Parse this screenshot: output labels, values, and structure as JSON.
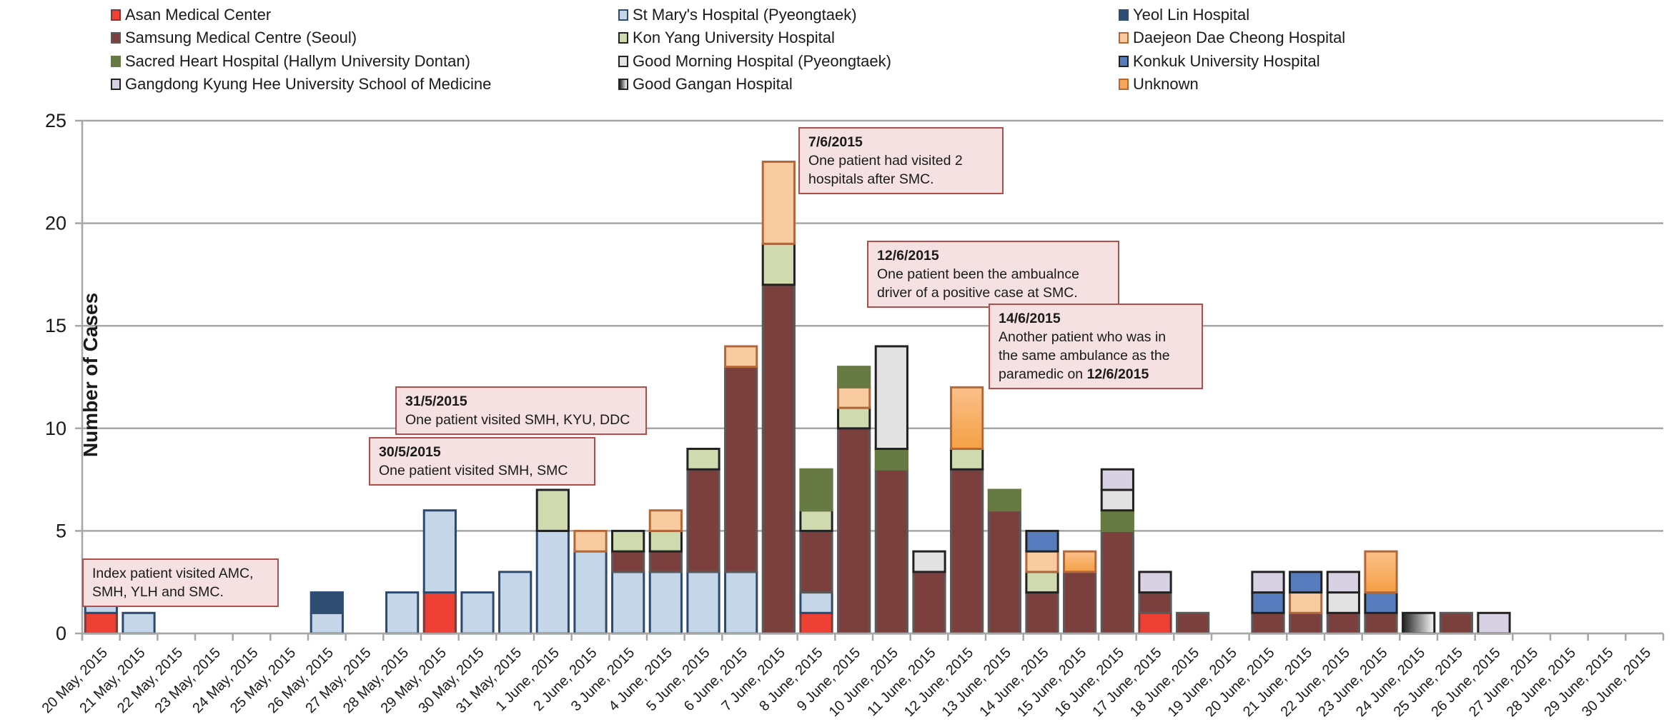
{
  "chart_data": {
    "type": "bar",
    "stacked": true,
    "title": "",
    "xlabel": "",
    "ylabel": "Number of Cases",
    "ylim": [
      0,
      25
    ],
    "yticks": [
      0,
      5,
      10,
      15,
      20,
      25
    ],
    "grid": true,
    "legend_position": "top",
    "categories": [
      "20 May, 2015",
      "21 May, 2015",
      "22 May, 2015",
      "23 May, 2015",
      "24 May, 2015",
      "25 May, 2015",
      "26 May, 2015",
      "27 May, 2015",
      "28 May, 2015",
      "29 May, 2015",
      "30 May, 2015",
      "31 May, 2015",
      "1 June, 2015",
      "2 June, 2015",
      "3 June, 2015",
      "4 June, 2015",
      "5 June, 2015",
      "6 June, 2015",
      "7 June, 2015",
      "8 June, 2015",
      "9 June, 2015",
      "10 June, 2015",
      "11 June, 2015",
      "12 June, 2015",
      "13 June, 2015",
      "14 June, 2015",
      "15 June, 2015",
      "16 June, 2015",
      "17 June, 2015",
      "18 June, 2015",
      "19 June, 2015",
      "20 June, 2015",
      "21 June, 2015",
      "22 June, 2015",
      "23 June, 2015",
      "24 June, 2015",
      "25 June, 2015",
      "26 June, 2015",
      "27 June, 2015",
      "28 June, 2015",
      "29 June, 2015",
      "30 June, 2015"
    ],
    "series": [
      {
        "name": "Asan Medical Center",
        "color": "#ee4035",
        "border": "#7a3b3b",
        "values": [
          1,
          0,
          0,
          0,
          0,
          0,
          0,
          0,
          0,
          2,
          0,
          0,
          0,
          0,
          0,
          0,
          0,
          0,
          0,
          1,
          0,
          0,
          0,
          0,
          0,
          0,
          0,
          0,
          1,
          0,
          0,
          0,
          0,
          0,
          0,
          0,
          0,
          0,
          0,
          0,
          0,
          0
        ]
      },
      {
        "name": "St Mary's Hospital (Pyeongtaek)",
        "color": "#c6d6e9",
        "border": "#2c4a6e",
        "values": [
          1,
          1,
          0,
          0,
          0,
          0,
          1,
          0,
          2,
          4,
          2,
          3,
          5,
          4,
          3,
          3,
          3,
          3,
          0,
          1,
          0,
          0,
          0,
          0,
          0,
          0,
          0,
          0,
          0,
          0,
          0,
          0,
          0,
          0,
          0,
          0,
          0,
          0,
          0,
          0,
          0,
          0
        ]
      },
      {
        "name": "Yeol Lin Hospital",
        "color": "#2f4d72",
        "border": "#2f4d72",
        "values": [
          0,
          0,
          0,
          0,
          0,
          0,
          1,
          0,
          0,
          0,
          0,
          0,
          0,
          0,
          0,
          0,
          0,
          0,
          0,
          0,
          0,
          0,
          0,
          0,
          0,
          0,
          0,
          0,
          0,
          0,
          0,
          0,
          0,
          0,
          0,
          0,
          0,
          0,
          0,
          0,
          0,
          0
        ]
      },
      {
        "name": "Samsung Medical Centre (Seoul)",
        "color": "#7b403e",
        "border": "#5a5a5a",
        "values": [
          0,
          0,
          0,
          0,
          0,
          0,
          0,
          0,
          0,
          0,
          0,
          0,
          0,
          0,
          1,
          1,
          5,
          10,
          17,
          3,
          10,
          8,
          3,
          8,
          6,
          2,
          3,
          5,
          1,
          1,
          0,
          1,
          1,
          1,
          1,
          0,
          1,
          0,
          0,
          0,
          0,
          0
        ]
      },
      {
        "name": "Kon Yang University Hospital",
        "color": "#cfdbae",
        "border": "#222222",
        "values": [
          0,
          0,
          0,
          0,
          0,
          0,
          0,
          0,
          0,
          0,
          0,
          0,
          2,
          0,
          1,
          1,
          1,
          0,
          2,
          1,
          1,
          0,
          0,
          1,
          0,
          1,
          0,
          0,
          0,
          0,
          0,
          0,
          0,
          0,
          0,
          0,
          0,
          0,
          0,
          0,
          0,
          0
        ]
      },
      {
        "name": "Daejeon Dae Cheong Hospital",
        "color": "#f8cba0",
        "border": "#b4683a",
        "values": [
          0,
          0,
          0,
          0,
          0,
          0,
          0,
          0,
          0,
          0,
          0,
          0,
          0,
          1,
          0,
          1,
          0,
          1,
          4,
          0,
          1,
          0,
          0,
          0,
          0,
          1,
          0,
          0,
          0,
          0,
          0,
          0,
          1,
          0,
          0,
          0,
          0,
          0,
          0,
          0,
          0,
          0
        ]
      },
      {
        "name": "Sacred Heart Hospital (Hallym University Dontan)",
        "color": "#687a44",
        "border": "#687a44",
        "values": [
          0,
          0,
          0,
          0,
          0,
          0,
          0,
          0,
          0,
          0,
          0,
          0,
          0,
          0,
          0,
          0,
          0,
          0,
          0,
          2,
          1,
          1,
          0,
          0,
          1,
          0,
          0,
          1,
          0,
          0,
          0,
          0,
          0,
          0,
          0,
          0,
          0,
          0,
          0,
          0,
          0,
          0
        ]
      },
      {
        "name": "Good Morning Hospital (Pyeongtaek)",
        "color": "#e2e2e2",
        "border": "#222222",
        "values": [
          0,
          0,
          0,
          0,
          0,
          0,
          0,
          0,
          0,
          0,
          0,
          0,
          0,
          0,
          0,
          0,
          0,
          0,
          0,
          0,
          0,
          5,
          1,
          0,
          0,
          0,
          0,
          1,
          0,
          0,
          0,
          0,
          0,
          1,
          0,
          0,
          0,
          0,
          0,
          0,
          0,
          0
        ]
      },
      {
        "name": "Konkuk University Hospital",
        "color": "#577cbd",
        "border": "#222222",
        "values": [
          0,
          0,
          0,
          0,
          0,
          0,
          0,
          0,
          0,
          0,
          0,
          0,
          0,
          0,
          0,
          0,
          0,
          0,
          0,
          0,
          0,
          0,
          0,
          0,
          0,
          1,
          0,
          0,
          0,
          0,
          0,
          1,
          1,
          0,
          1,
          0,
          0,
          0,
          0,
          0,
          0,
          0
        ]
      },
      {
        "name": "Unknown",
        "color": "#f7a856",
        "border": "#b4683a",
        "values": [
          0,
          0,
          0,
          0,
          0,
          0,
          0,
          0,
          0,
          0,
          0,
          0,
          0,
          0,
          0,
          0,
          0,
          0,
          0,
          0,
          0,
          0,
          0,
          3,
          0,
          0,
          1,
          0,
          0,
          0,
          0,
          0,
          0,
          0,
          2,
          0,
          0,
          0,
          0,
          0,
          0,
          0
        ]
      },
      {
        "name": "Gangdong Kyung Hee University School of Medicine",
        "color": "#d8d0e3",
        "border": "#222222",
        "values": [
          0,
          0,
          0,
          0,
          0,
          0,
          0,
          0,
          0,
          0,
          0,
          0,
          0,
          0,
          0,
          0,
          0,
          0,
          0,
          0,
          0,
          0,
          0,
          0,
          0,
          0,
          0,
          1,
          1,
          0,
          0,
          1,
          0,
          1,
          0,
          0,
          0,
          1,
          0,
          0,
          0,
          0
        ]
      },
      {
        "name": "Good Gangan Hospital",
        "color": "#9a9a9a",
        "border": "#222222",
        "values": [
          0,
          0,
          0,
          0,
          0,
          0,
          0,
          0,
          0,
          0,
          0,
          0,
          0,
          0,
          0,
          0,
          0,
          0,
          0,
          0,
          0,
          0,
          0,
          0,
          0,
          0,
          0,
          0,
          0,
          0,
          0,
          0,
          0,
          0,
          0,
          1,
          0,
          0,
          0,
          0,
          0,
          0
        ]
      }
    ],
    "annotations": [
      {
        "date": "",
        "text": "Index patient visited AMC, SMH, YLH and SMC.",
        "lines": [
          "Index patient visited AMC,",
          "SMH, YLH and SMC."
        ]
      },
      {
        "date": "30/5/2015",
        "lines": [
          "One patient visited SMH, SMC"
        ]
      },
      {
        "date": "31/5/2015",
        "lines": [
          "One patient visited SMH, KYU, DDC"
        ]
      },
      {
        "date": "7/6/2015",
        "lines": [
          "One patient had visited 2",
          "hospitals after SMC."
        ]
      },
      {
        "date": "12/6/2015",
        "lines": [
          "One patient been the ambualnce",
          "driver of a positive case at SMC."
        ]
      },
      {
        "date": "14/6/2015",
        "lines": [
          "Another patient who was in",
          "the same ambulance as the",
          "paramedic on "
        ],
        "bold_suffix": "12/6/2015"
      }
    ]
  },
  "legend": [
    {
      "label": "Asan Medical Center",
      "color": "#ee4035",
      "border": "#7a3b3b"
    },
    {
      "label": "Samsung Medical Centre (Seoul)",
      "color": "#7b403e",
      "border": "#5a5a5a"
    },
    {
      "label": "Sacred Heart Hospital (Hallym University Dontan)",
      "color": "#687a44",
      "border": "#687a44"
    },
    {
      "label": "Gangdong Kyung Hee University School of Medicine",
      "color": "#d8d0e3",
      "border": "#222222"
    },
    {
      "label": "St Mary's Hospital (Pyeongtaek)",
      "color": "#c6d6e9",
      "border": "#2c4a6e"
    },
    {
      "label": "Kon Yang University Hospital",
      "color": "#cfdbae",
      "border": "#222222"
    },
    {
      "label": "Good Morning Hospital (Pyeongtaek)",
      "color": "#e2e2e2",
      "border": "#222222"
    },
    {
      "label": "Good Gangan Hospital",
      "color": "gradient",
      "border": "#222222"
    },
    {
      "label": "Yeol Lin Hospital",
      "color": "#2f4d72",
      "border": "#2f4d72"
    },
    {
      "label": "Daejeon Dae Cheong Hospital",
      "color": "#f8cba0",
      "border": "#b4683a"
    },
    {
      "label": "Konkuk University Hospital",
      "color": "#577cbd",
      "border": "#222222"
    },
    {
      "label": "Unknown",
      "color": "#f7a856",
      "border": "#b4683a"
    }
  ]
}
